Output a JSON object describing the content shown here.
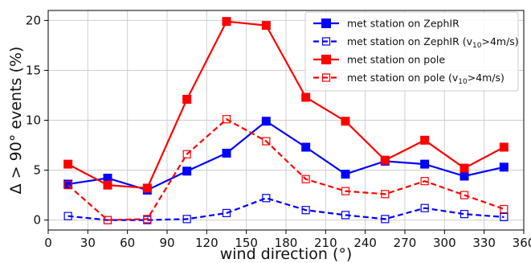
{
  "chart_data": {
    "type": "line",
    "xlabel": "wind direction (°)",
    "ylabel": "Δ > 90° events (%)",
    "xlim": [
      0,
      360
    ],
    "ylim": [
      -1,
      21
    ],
    "xticks": [
      0,
      30,
      60,
      90,
      120,
      150,
      180,
      210,
      240,
      270,
      300,
      330,
      360
    ],
    "yticks": [
      0,
      5,
      10,
      15,
      20
    ],
    "grid": true,
    "legend_position": "top-right",
    "x": [
      15,
      45,
      75,
      105,
      135,
      165,
      195,
      225,
      255,
      285,
      315,
      345
    ],
    "series": [
      {
        "name": "met station on ZephIR",
        "legend_main": "met station on ZephIR",
        "color": "#0000ff",
        "linestyle": "solid",
        "marker": "filled-square",
        "values": [
          3.6,
          4.2,
          3.0,
          4.9,
          6.7,
          9.9,
          7.3,
          4.6,
          5.9,
          5.6,
          4.4,
          5.3
        ]
      },
      {
        "name": "met station on ZephIR (v10>4m/s)",
        "legend_main": "met station on ZephIR (v",
        "legend_sub": "10",
        "legend_tail": ">4m/s)",
        "color": "#0000ff",
        "linestyle": "dashed",
        "marker": "open-square",
        "values": [
          0.4,
          0.0,
          0.0,
          0.1,
          0.7,
          2.2,
          1.0,
          0.5,
          0.1,
          1.2,
          0.6,
          0.3
        ]
      },
      {
        "name": "met station on pole",
        "legend_main": "met station on pole",
        "color": "#ff0000",
        "linestyle": "solid",
        "marker": "filled-square",
        "values": [
          5.6,
          3.5,
          3.2,
          12.1,
          19.9,
          19.5,
          12.3,
          9.9,
          6.0,
          8.0,
          5.2,
          7.3
        ]
      },
      {
        "name": "met station on pole (v10>4m/s)",
        "legend_main": "met station on pole (v",
        "legend_sub": "10",
        "legend_tail": ">4m/s)",
        "color": "#ff0000",
        "linestyle": "dashed",
        "marker": "open-square",
        "values": [
          3.5,
          0.0,
          0.1,
          6.6,
          10.1,
          7.9,
          4.1,
          2.9,
          2.6,
          3.9,
          2.5,
          1.1
        ]
      }
    ]
  }
}
